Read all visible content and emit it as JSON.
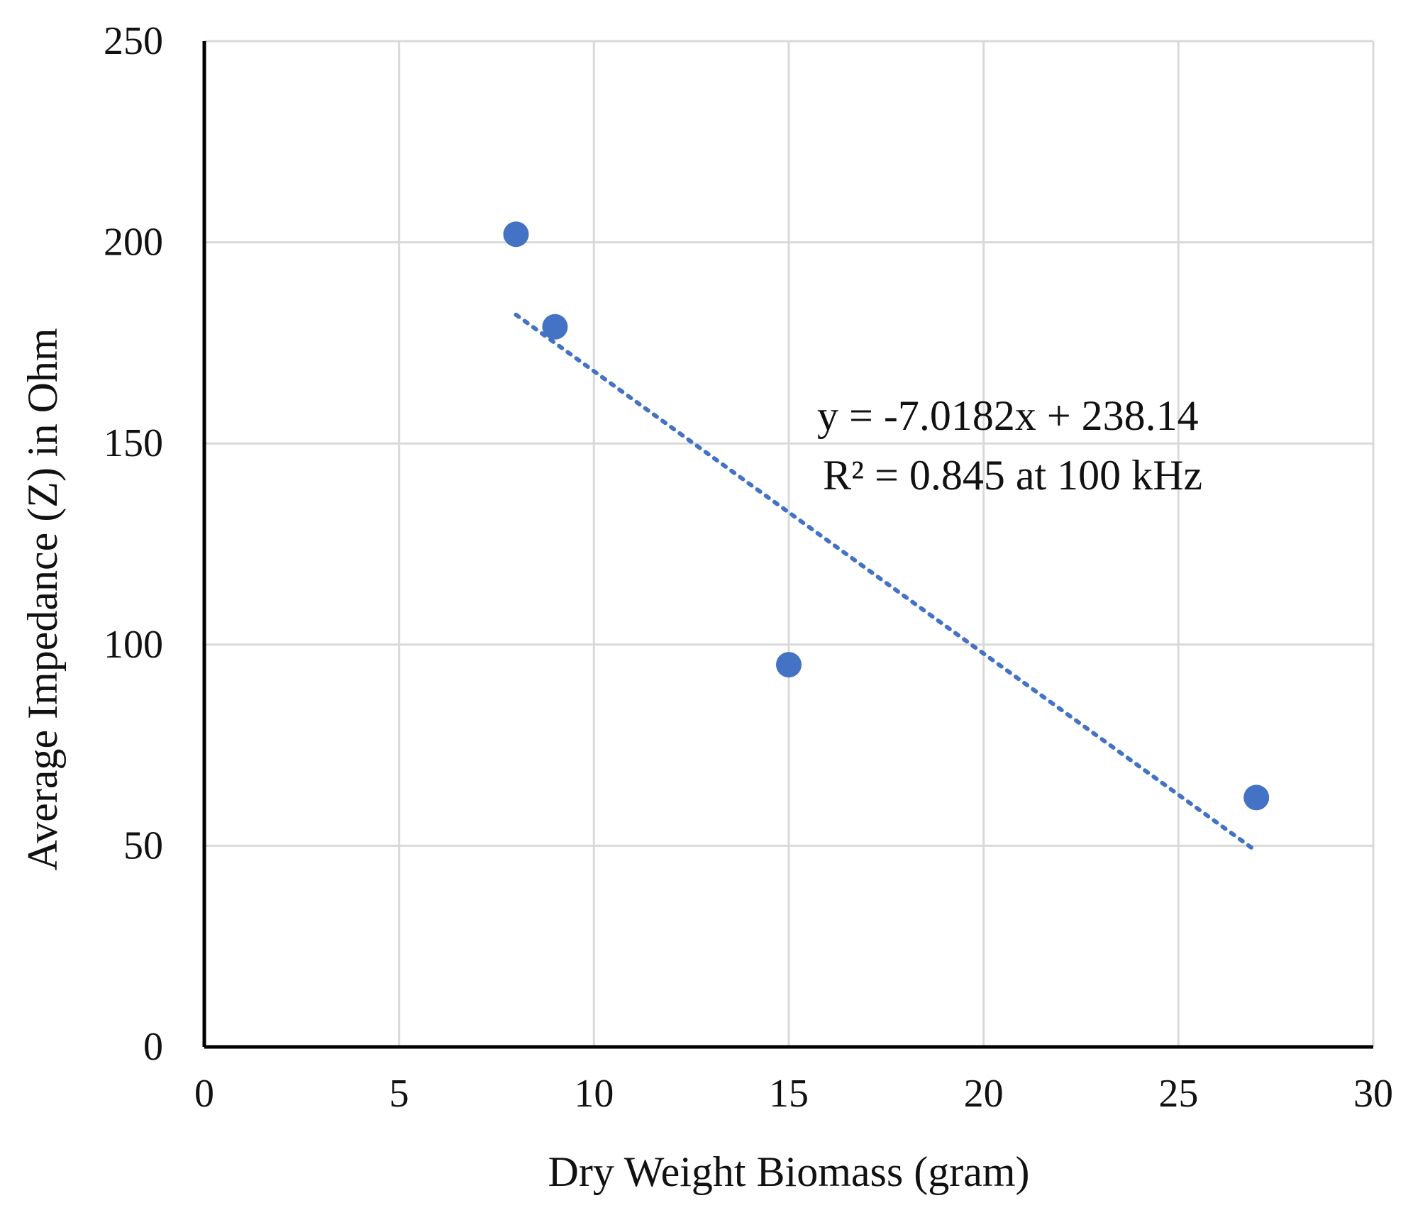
{
  "chart_data": {
    "type": "scatter",
    "title": "",
    "xlabel": "Dry Weight Biomass (gram)",
    "ylabel": "Average Impedance (Z) in Ohm",
    "xlim": [
      0,
      30
    ],
    "ylim": [
      0,
      250
    ],
    "xticks": [
      0,
      5,
      10,
      15,
      20,
      25,
      30
    ],
    "yticks": [
      0,
      50,
      100,
      150,
      200,
      250
    ],
    "grid": true,
    "series": [
      {
        "name": "Average Impedance",
        "color": "#4472C4",
        "points": [
          {
            "x": 8,
            "y": 202
          },
          {
            "x": 9,
            "y": 179
          },
          {
            "x": 15,
            "y": 95
          },
          {
            "x": 27,
            "y": 62
          }
        ]
      }
    ],
    "trendline": {
      "type": "linear",
      "slope": -7.0182,
      "intercept": 238.14,
      "x_range": [
        8,
        27
      ],
      "style": "dotted",
      "color": "#4472C4"
    },
    "annotations": [
      "y = -7.0182x + 238.14",
      "R² = 0.845 at 100 kHz"
    ]
  }
}
